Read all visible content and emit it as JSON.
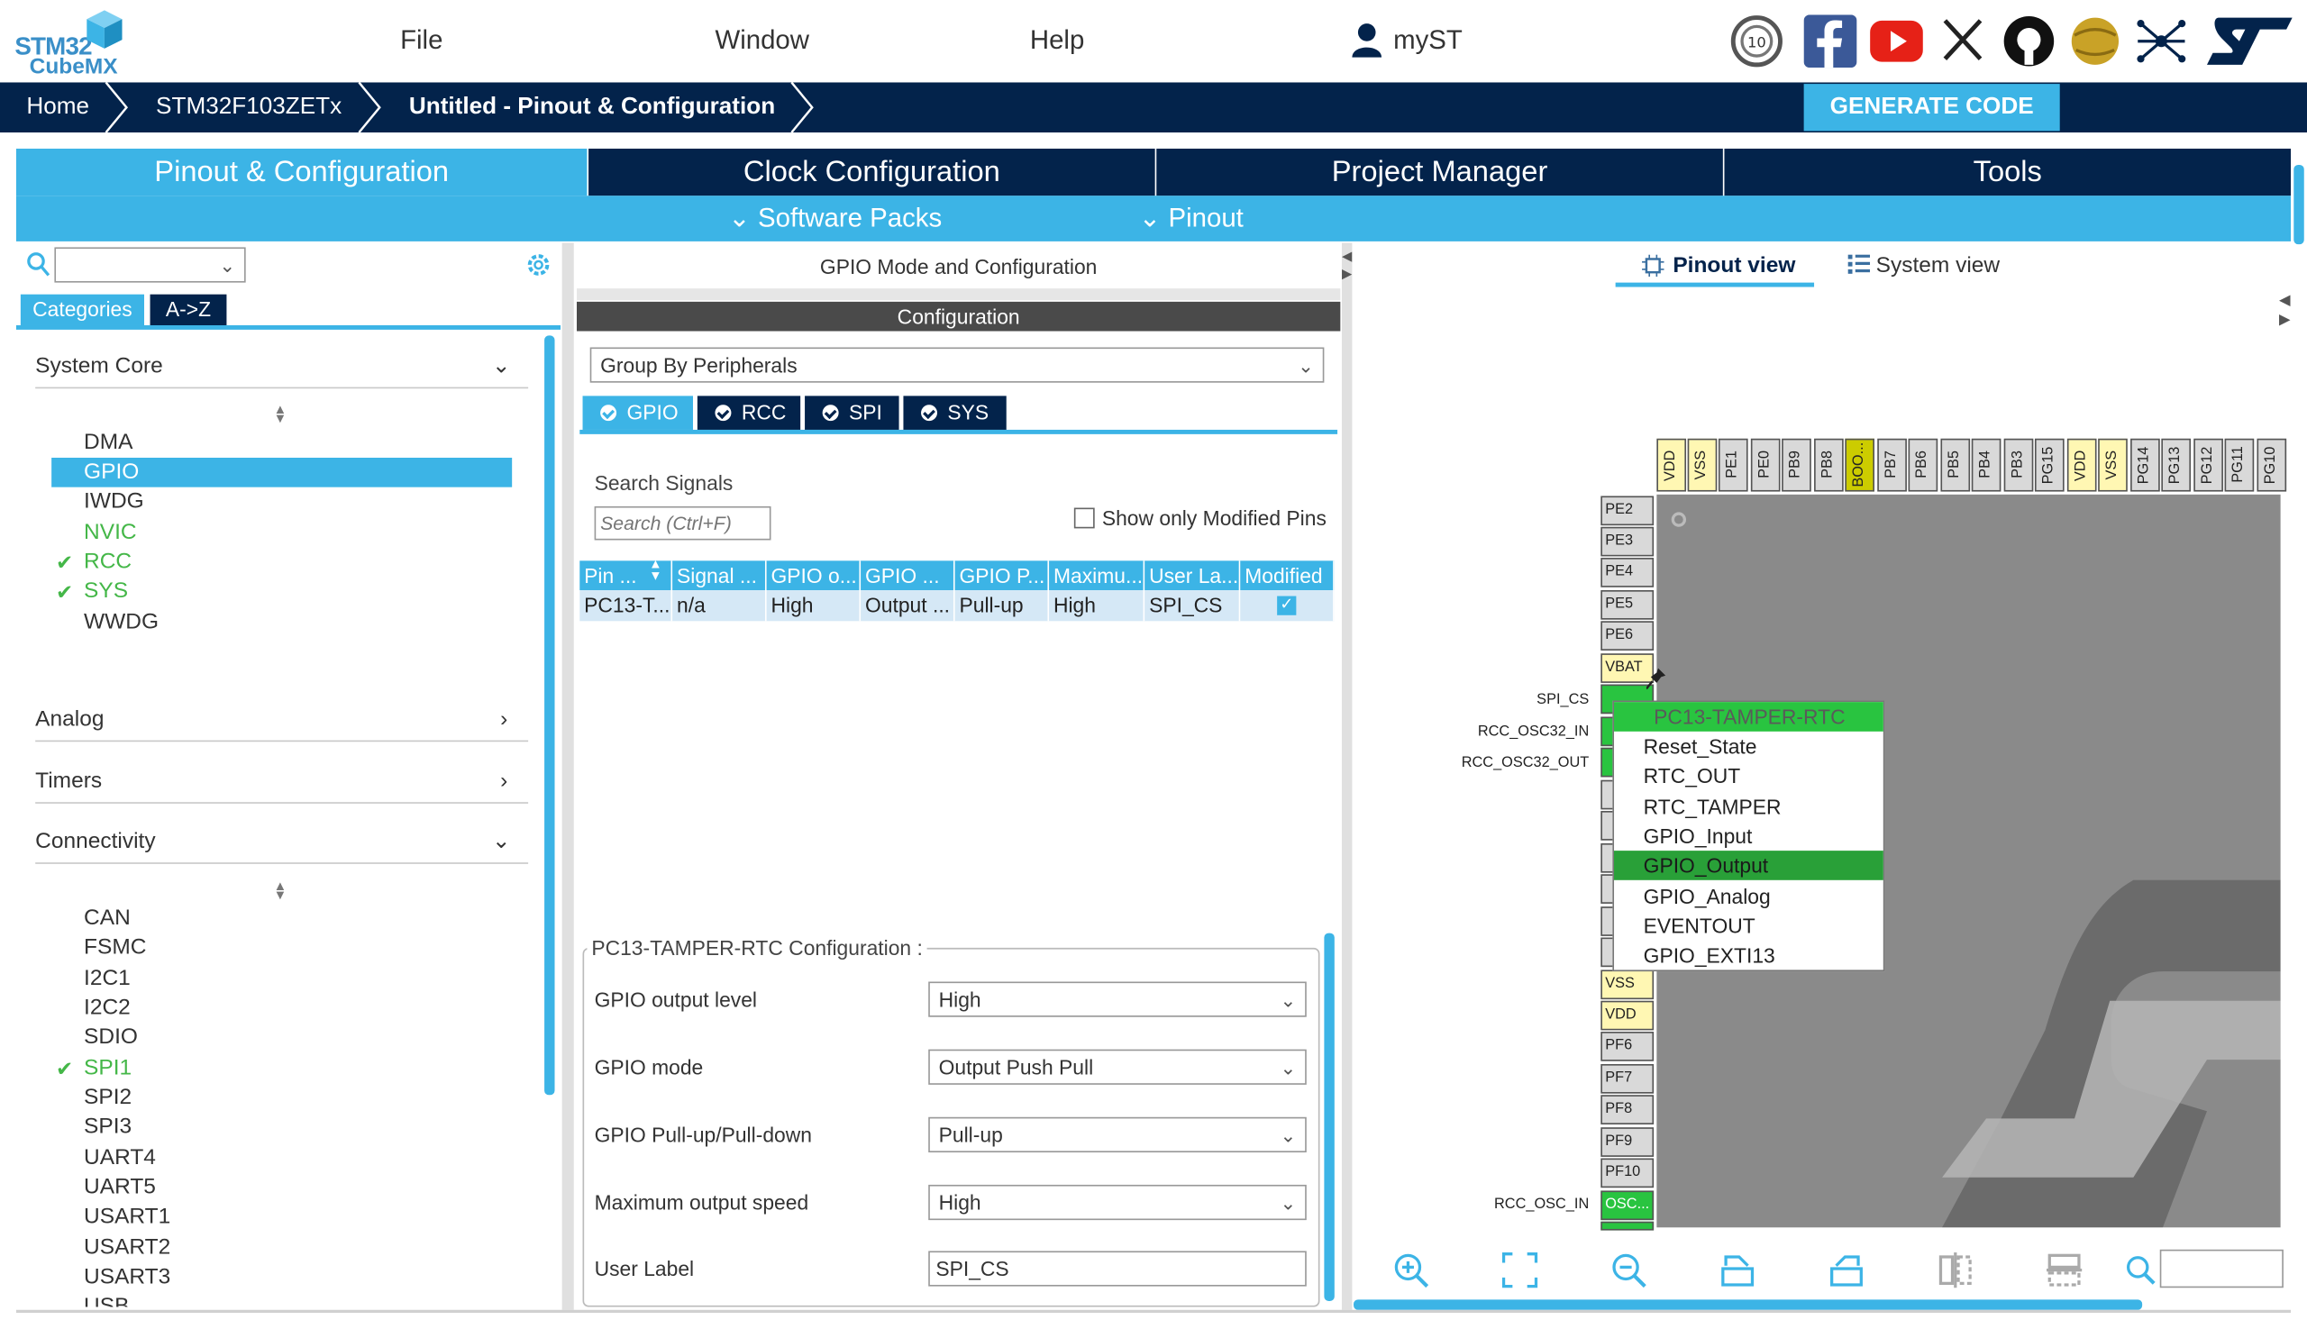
{
  "app": {
    "logo_line1": "STM32",
    "logo_line2": "CubeMX"
  },
  "menu": {
    "file": "File",
    "window": "Window",
    "help": "Help",
    "myst": "myST"
  },
  "breadcrumb": {
    "home": "Home",
    "device": "STM32F103ZETx",
    "project": "Untitled - Pinout & Configuration"
  },
  "generate_label": "GENERATE CODE",
  "tabs": [
    "Pinout & Configuration",
    "Clock Configuration",
    "Project Manager",
    "Tools"
  ],
  "subtabs": {
    "software_packs": "Software Packs",
    "pinout": "Pinout"
  },
  "left": {
    "categories_tab": "Categories",
    "az_tab": "A->Z",
    "system_core": {
      "title": "System Core",
      "items": [
        "DMA",
        "GPIO",
        "IWDG",
        "NVIC",
        "RCC",
        "SYS",
        "WWDG"
      ]
    },
    "analog": "Analog",
    "timers": "Timers",
    "connectivity": {
      "title": "Connectivity",
      "items": [
        "CAN",
        "FSMC",
        "I2C1",
        "I2C2",
        "SDIO",
        "SPI1",
        "SPI2",
        "SPI3",
        "UART4",
        "UART5",
        "USART1",
        "USART2",
        "USART3",
        "USB"
      ]
    }
  },
  "middle": {
    "panel_title": "GPIO Mode and Configuration",
    "config_bar": "Configuration",
    "group_by": "Group By Peripherals",
    "periph_tabs": [
      "GPIO",
      "RCC",
      "SPI",
      "SYS"
    ],
    "search_label": "Search Signals",
    "search_placeholder": "Search (Ctrl+F)",
    "show_modified": "Show only Modified Pins",
    "table_headers": [
      "Pin ...",
      "Signal ...",
      "GPIO o...",
      "GPIO ...",
      "GPIO P...",
      "Maximu...",
      "User La...",
      "Modified"
    ],
    "table_rows": [
      [
        "PC13-T...",
        "n/a",
        "High",
        "Output ...",
        "Pull-up",
        "High",
        "SPI_CS",
        "✓"
      ]
    ],
    "pin_config_title": "PC13-TAMPER-RTC Configuration :",
    "fields": [
      {
        "label": "GPIO output level",
        "value": "High"
      },
      {
        "label": "GPIO mode",
        "value": "Output Push Pull"
      },
      {
        "label": "GPIO Pull-up/Pull-down",
        "value": "Pull-up"
      },
      {
        "label": "Maximum output speed",
        "value": "High"
      },
      {
        "label": "User Label",
        "value": "SPI_CS"
      }
    ]
  },
  "right": {
    "pinout_view": "Pinout view",
    "system_view": "System view",
    "top_pins": [
      "VDD",
      "VSS",
      "PE1",
      "PE0",
      "PB9",
      "PB8",
      "BOO...",
      "PB7",
      "PB6",
      "PB5",
      "PB4",
      "PB3",
      "PG15",
      "VDD",
      "VSS",
      "PG14",
      "PG13",
      "PG12",
      "PG11",
      "PG10"
    ],
    "left_pins_upper": [
      "PE2",
      "PE3",
      "PE4",
      "PE5",
      "PE6",
      "VBAT"
    ],
    "left_pins_lower": [
      "VSS",
      "VDD",
      "PF6",
      "PF7",
      "PF8",
      "PF9",
      "PF10",
      "OSC..."
    ],
    "signal_labels": {
      "spi_cs": "SPI_CS",
      "osc32_in": "RCC_OSC32_IN",
      "osc32_out": "RCC_OSC32_OUT",
      "osc_in": "RCC_OSC_IN"
    },
    "popup": {
      "header": "PC13-TAMPER-RTC",
      "items": [
        "Reset_State",
        "RTC_OUT",
        "RTC_TAMPER",
        "GPIO_Input",
        "GPIO_Output",
        "GPIO_Analog",
        "EVENTOUT",
        "GPIO_EXTI13"
      ]
    }
  }
}
